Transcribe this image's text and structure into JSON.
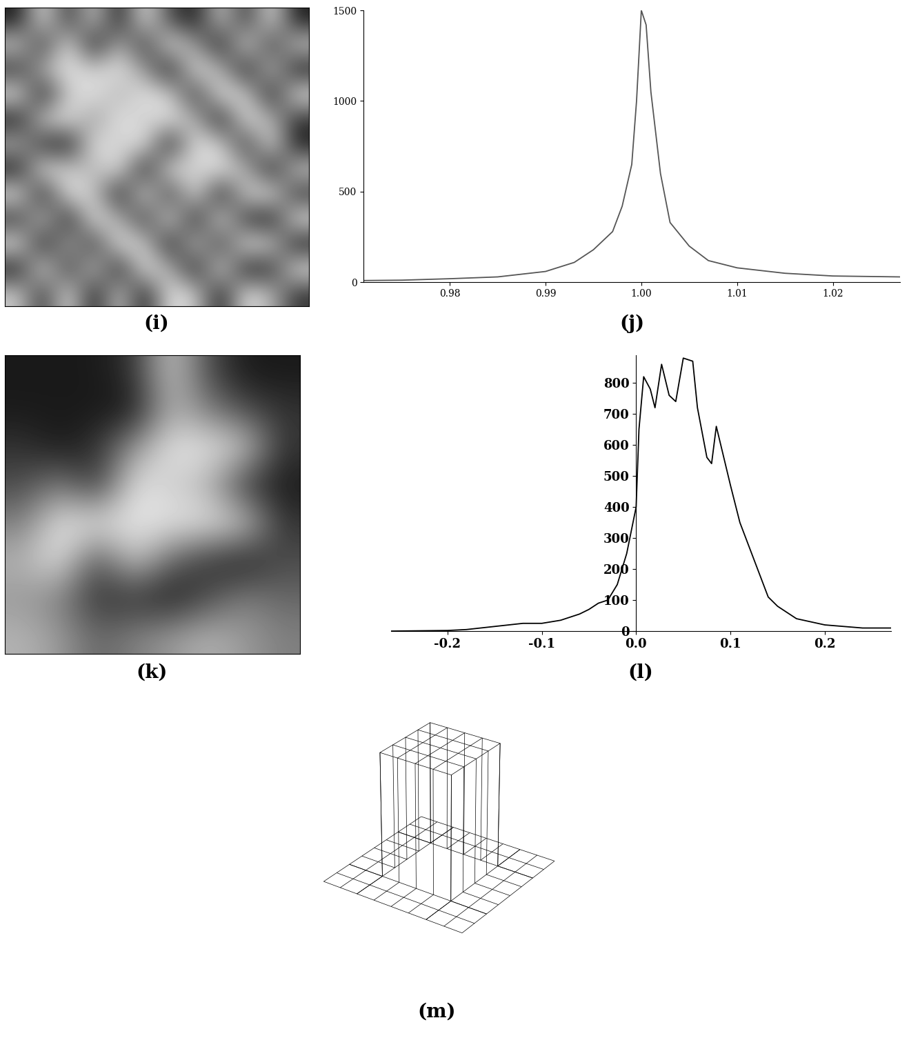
{
  "chart_data": [
    {
      "type": "image",
      "title": "(i)",
      "tick_labels": false,
      "color": "gray",
      "clim": [
        0,
        1
      ],
      "cells": [
        [
          0.1,
          0.9,
          0.2,
          0.8,
          0.1,
          0.9,
          0.3,
          0.1,
          0.8,
          0.2,
          0.9,
          0.1
        ],
        [
          0.8,
          0.2,
          0.9,
          0.1,
          0.7,
          0.2,
          0.9,
          0.6,
          0.1,
          0.9,
          0.2,
          0.8
        ],
        [
          0.2,
          0.7,
          0.9,
          0.8,
          0.9,
          0.6,
          0.1,
          0.9,
          0.7,
          0.1,
          0.8,
          0.1
        ],
        [
          0.9,
          0.1,
          0.8,
          0.9,
          0.7,
          0.9,
          0.8,
          0.2,
          0.9,
          0.8,
          0.1,
          0.9
        ],
        [
          0.1,
          0.8,
          0.9,
          0.6,
          0.9,
          0.8,
          0.9,
          0.7,
          0.1,
          0.9,
          0.7,
          0.2
        ],
        [
          0.7,
          0.2,
          0.1,
          0.9,
          0.8,
          0.9,
          0.1,
          0.9,
          0.8,
          0.2,
          0.9,
          0.1
        ],
        [
          0.1,
          0.9,
          0.8,
          0.7,
          0.9,
          0.1,
          0.9,
          0.8,
          0.9,
          0.7,
          0.1,
          0.8
        ],
        [
          0.9,
          0.1,
          0.9,
          0.8,
          0.1,
          0.9,
          0.2,
          0.9,
          0.1,
          0.8,
          0.9,
          0.2
        ],
        [
          0.2,
          0.8,
          0.1,
          0.9,
          0.7,
          0.2,
          0.9,
          0.1,
          0.9,
          0.2,
          0.1,
          0.9
        ],
        [
          0.9,
          0.1,
          0.7,
          0.2,
          0.9,
          0.8,
          0.1,
          0.8,
          0.2,
          0.9,
          0.8,
          0.1
        ],
        [
          0.1,
          0.9,
          0.2,
          0.8,
          0.1,
          0.9,
          0.7,
          0.1,
          0.9,
          0.1,
          0.2,
          0.9
        ],
        [
          0.8,
          0.2,
          0.9,
          0.1,
          0.8,
          0.1,
          0.9,
          0.8,
          0.1,
          0.9,
          0.7,
          0.2
        ]
      ]
    },
    {
      "type": "line",
      "title": "(j)",
      "color": "#555555",
      "line_style": "solid",
      "x": [
        0.971,
        0.975,
        0.98,
        0.985,
        0.99,
        0.993,
        0.995,
        0.997,
        0.998,
        0.999,
        0.9995,
        1.0,
        1.0005,
        1.001,
        1.002,
        1.003,
        1.005,
        1.007,
        1.01,
        1.015,
        1.02,
        1.027
      ],
      "values": [
        10,
        12,
        20,
        30,
        60,
        110,
        180,
        280,
        420,
        650,
        1000,
        1500,
        1420,
        1050,
        600,
        330,
        200,
        120,
        80,
        50,
        35,
        30
      ],
      "xlim": [
        0.971,
        1.027
      ],
      "ylim": [
        0,
        1500
      ],
      "xticks": [
        0.98,
        0.99,
        {
          "value": 1.0,
          "label": "1.00"
        },
        1.01,
        1.02
      ],
      "yticks": [
        0,
        500,
        1000,
        1500
      ]
    },
    {
      "type": "image",
      "title": "(k)",
      "tick_labels": false,
      "color": "gray",
      "clim": [
        0,
        1
      ],
      "cells": [
        [
          0.1,
          0.1,
          0.1,
          0.2,
          0.8,
          0.3,
          0.1,
          0.1
        ],
        [
          0.1,
          0.1,
          0.1,
          0.1,
          0.7,
          0.5,
          0.3,
          0.2
        ],
        [
          0.2,
          0.1,
          0.2,
          0.6,
          0.9,
          0.9,
          0.8,
          0.2
        ],
        [
          0.3,
          0.5,
          0.2,
          0.9,
          0.8,
          0.7,
          0.2,
          0.1
        ],
        [
          0.5,
          0.9,
          0.9,
          0.9,
          0.9,
          0.9,
          0.8,
          0.2
        ],
        [
          0.7,
          0.9,
          0.3,
          0.8,
          0.4,
          0.2,
          0.1,
          0.3
        ],
        [
          0.6,
          0.5,
          0.2,
          0.2,
          0.1,
          0.3,
          0.5,
          0.4
        ],
        [
          0.7,
          0.6,
          0.4,
          0.5,
          0.6,
          0.7,
          0.6,
          0.5
        ]
      ]
    },
    {
      "type": "line",
      "title": "(l)",
      "color": "#000000",
      "line_style": "solid",
      "x": [
        -0.26,
        -0.2,
        -0.18,
        -0.15,
        -0.12,
        -0.1,
        -0.08,
        -0.06,
        -0.05,
        -0.04,
        -0.03,
        -0.02,
        -0.01,
        0.0,
        0.003,
        0.008,
        0.015,
        0.02,
        0.027,
        0.035,
        0.042,
        0.05,
        0.06,
        0.065,
        0.075,
        0.08,
        0.085,
        0.1,
        0.11,
        0.12,
        0.13,
        0.14,
        0.15,
        0.17,
        0.2,
        0.24,
        0.27
      ],
      "values": [
        0,
        2,
        5,
        15,
        25,
        25,
        35,
        55,
        70,
        90,
        100,
        150,
        250,
        400,
        650,
        820,
        780,
        720,
        860,
        760,
        740,
        880,
        870,
        720,
        560,
        540,
        660,
        470,
        350,
        270,
        190,
        110,
        80,
        40,
        20,
        10,
        10
      ],
      "xlim": [
        -0.26,
        0.27
      ],
      "ylim": [
        0,
        890
      ],
      "xticks": [
        -0.2,
        -0.1,
        0.0,
        0.1,
        0.2
      ],
      "yticks": [
        0,
        100,
        200,
        300,
        400,
        500,
        600,
        700,
        800
      ]
    },
    {
      "type": "surface",
      "title": "(m)",
      "tick_labels": false,
      "color": "#000000",
      "x": [
        0,
        1,
        2,
        2,
        3,
        4,
        5,
        6,
        6,
        7,
        8
      ],
      "y": [
        0,
        1,
        2,
        2,
        3,
        4,
        5,
        6,
        6,
        7,
        8
      ],
      "z": [
        [
          0,
          0,
          0,
          0,
          0,
          0,
          0,
          0,
          0,
          0,
          0
        ],
        [
          0,
          0,
          0,
          0,
          0,
          0,
          0,
          0,
          0,
          0,
          0
        ],
        [
          0,
          0,
          0,
          0,
          0,
          0,
          0,
          0,
          0,
          0,
          0
        ],
        [
          0,
          0,
          0,
          1,
          1,
          1,
          1,
          1,
          0,
          0,
          0
        ],
        [
          0,
          0,
          0,
          1,
          1,
          1,
          1,
          1,
          0,
          0,
          0
        ],
        [
          0,
          0,
          0,
          1,
          1,
          1,
          1,
          1,
          0,
          0,
          0
        ],
        [
          0,
          0,
          0,
          1,
          1,
          1,
          1,
          1,
          0,
          0,
          0
        ],
        [
          0,
          0,
          0,
          1,
          1,
          1,
          1,
          1,
          0,
          0,
          0
        ],
        [
          0,
          0,
          0,
          0,
          0,
          0,
          0,
          0,
          0,
          0,
          0
        ],
        [
          0,
          0,
          0,
          0,
          0,
          0,
          0,
          0,
          0,
          0,
          0
        ],
        [
          0,
          0,
          0,
          0,
          0,
          0,
          0,
          0,
          0,
          0,
          0
        ]
      ]
    }
  ]
}
